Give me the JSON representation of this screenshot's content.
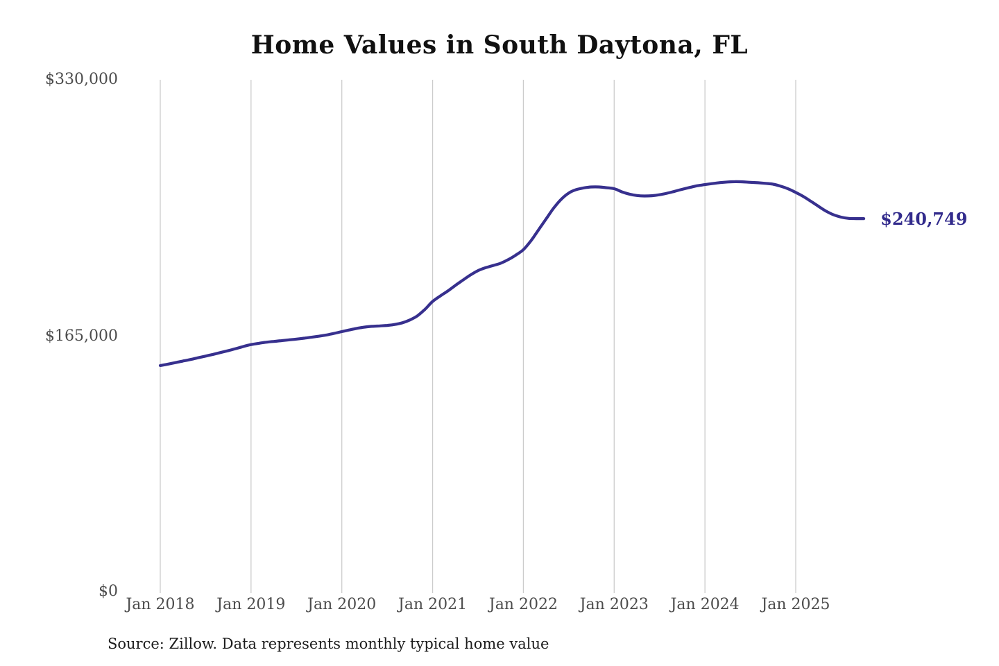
{
  "title": "Home Values in South Daytona, FL",
  "source_note": "Source: Zillow. Data represents monthly typical home value",
  "colors": {
    "line": "#37308e",
    "grid": "#cccccc",
    "axis_label": "#4c4c4c",
    "title": "#111111",
    "value_label": "#322b8c",
    "source": "#1c1c1c"
  },
  "chart_data": {
    "type": "line",
    "title": "Home Values in South Daytona, FL",
    "x_tick_labels": [
      "Jan 2018",
      "Jan 2019",
      "Jan 2020",
      "Jan 2021",
      "Jan 2022",
      "Jan 2023",
      "Jan 2024",
      "Jan 2025"
    ],
    "y_tick_labels": [
      "$0",
      "$165,000",
      "$330,000"
    ],
    "y_ticks": [
      0,
      165000,
      330000
    ],
    "ylim": [
      0,
      330000
    ],
    "grid": "vertical-gridlines-only",
    "legend": "none",
    "start_month": "2018-01",
    "interval": "monthly",
    "series": [
      {
        "name": "Typical home value (USD)",
        "values": [
          146300,
          147200,
          148200,
          149200,
          150200,
          151300,
          152400,
          153500,
          154700,
          155900,
          157200,
          158600,
          159800,
          160600,
          161300,
          161800,
          162300,
          162800,
          163300,
          163900,
          164500,
          165200,
          166000,
          167000,
          168100,
          169200,
          170200,
          171000,
          171500,
          171800,
          172100,
          172700,
          173800,
          175600,
          178300,
          182500,
          187500,
          191000,
          194200,
          197800,
          201200,
          204500,
          207300,
          209200,
          210600,
          212100,
          214400,
          217300,
          220800,
          226500,
          233500,
          240500,
          247500,
          253200,
          257200,
          259400,
          260500,
          261100,
          261100,
          260600,
          260000,
          258000,
          256500,
          255600,
          255300,
          255500,
          256100,
          257100,
          258300,
          259600,
          260800,
          261900,
          262600,
          263300,
          263900,
          264300,
          264500,
          264400,
          264100,
          263800,
          263400,
          262900,
          261600,
          259900,
          257600,
          255000,
          251900,
          248700,
          245600,
          243200,
          241700,
          240900,
          240770,
          240749
        ]
      }
    ],
    "last_value": 240749,
    "last_value_label": "$240,749"
  }
}
